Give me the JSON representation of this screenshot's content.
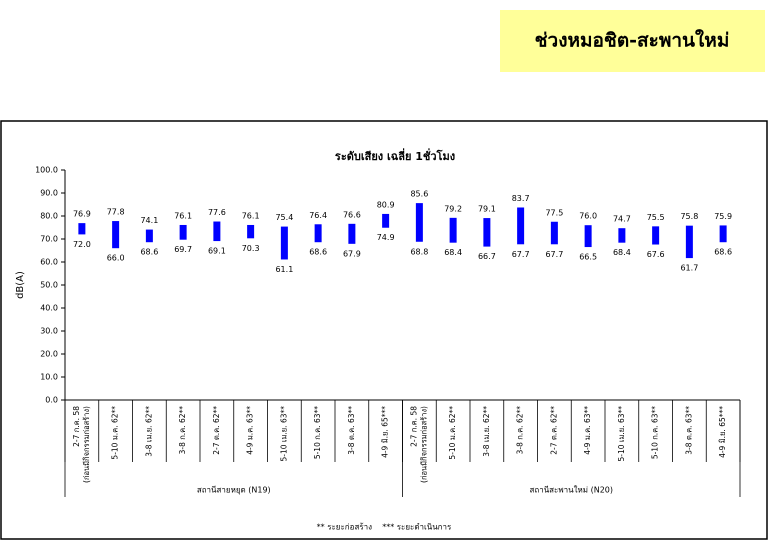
{
  "header": {
    "title": "ช่วงหมอชิต-สะพานใหม่"
  },
  "chart_data": {
    "type": "floating-bar",
    "title": "ระดับเสียง เฉลี่ย 1ชั่วโมง",
    "y_label": "dB(A)",
    "color": "#0000ff",
    "ylim": [
      0,
      100
    ],
    "yticks": [
      {
        "value": 0,
        "label": "0.0"
      },
      {
        "value": 10,
        "label": "10.0"
      },
      {
        "value": 20,
        "label": "20.0"
      },
      {
        "value": 30,
        "label": "30.0"
      },
      {
        "value": 40,
        "label": "40.0"
      },
      {
        "value": 50,
        "label": "50.0"
      },
      {
        "value": 60,
        "label": "60.0"
      },
      {
        "value": 70,
        "label": "70.0"
      },
      {
        "value": 80,
        "label": "80.0"
      },
      {
        "value": 90,
        "label": "90.0"
      },
      {
        "value": 100,
        "label": "100.0"
      }
    ],
    "categories": [
      [
        "2-7 ก.ค. 58",
        "(ก่อนมีกิจกรรมก่อสร้าง)"
      ],
      [
        "5-10 ม.ค. 62**"
      ],
      [
        "3-8 เม.ย. 62**"
      ],
      [
        "3-8 ก.ค. 62**"
      ],
      [
        "2-7 ต.ค. 62**"
      ],
      [
        "4-9 ม.ค. 63**"
      ],
      [
        "5-10 เม.ย. 63**"
      ],
      [
        "5-10 ก.ค. 63**"
      ],
      [
        "3-8 ต.ค. 63**"
      ],
      [
        "4-9 มิ.ย. 65***"
      ],
      [
        "2-7 ก.ค. 58",
        "(ก่อนมีกิจกรรมก่อสร้าง)"
      ],
      [
        "5-10 ม.ค. 62**"
      ],
      [
        "3-8 เม.ย. 62**"
      ],
      [
        "3-8 ก.ค. 62**"
      ],
      [
        "2-7 ต.ค. 62**"
      ],
      [
        "4-9 ม.ค. 63**"
      ],
      [
        "5-10 เม.ย. 63**"
      ],
      [
        "5-10 ก.ค. 63**"
      ],
      [
        "3-8 ต.ค. 63**"
      ],
      [
        "4-9 มิ.ย. 65***"
      ]
    ],
    "group_labels": [
      "สถานีสายหยุด (N19)",
      "สถานีสะพานใหม่ (N20)"
    ],
    "series": [
      {
        "values": [
          76.9,
          77.8,
          74.1,
          76.1,
          77.6,
          76.1,
          75.4,
          76.4,
          76.6,
          80.9,
          85.6,
          79.2,
          79.1,
          83.7,
          77.5,
          76.0,
          74.7,
          75.5,
          75.8,
          75.9
        ],
        "value_labels": [
          "76.9",
          "77.8",
          "74.1",
          "76.1",
          "77.6",
          "76.1",
          "75.4",
          "76.4",
          "76.6",
          "80.9",
          "85.6",
          "79.2",
          "79.1",
          "83.7",
          "77.5",
          "76.0",
          "74.7",
          "75.5",
          "75.8",
          "75.9"
        ]
      },
      {
        "values": [
          72.0,
          66.0,
          68.6,
          69.7,
          69.1,
          70.3,
          61.1,
          68.6,
          67.9,
          74.9,
          68.8,
          68.4,
          66.7,
          67.7,
          67.7,
          66.5,
          68.4,
          67.6,
          61.7,
          68.6
        ],
        "value_labels": [
          "72.0",
          "66.0",
          "68.6",
          "69.7",
          "69.1",
          "70.3",
          "61.1",
          "68.6",
          "67.9",
          "74.9",
          "68.8",
          "68.4",
          "66.7",
          "67.7",
          "67.7",
          "66.5",
          "68.4",
          "67.6",
          "61.7",
          "68.6"
        ]
      }
    ],
    "footnote": "** ระยะก่อสร้าง    *** ระยะดำเนินการ"
  }
}
